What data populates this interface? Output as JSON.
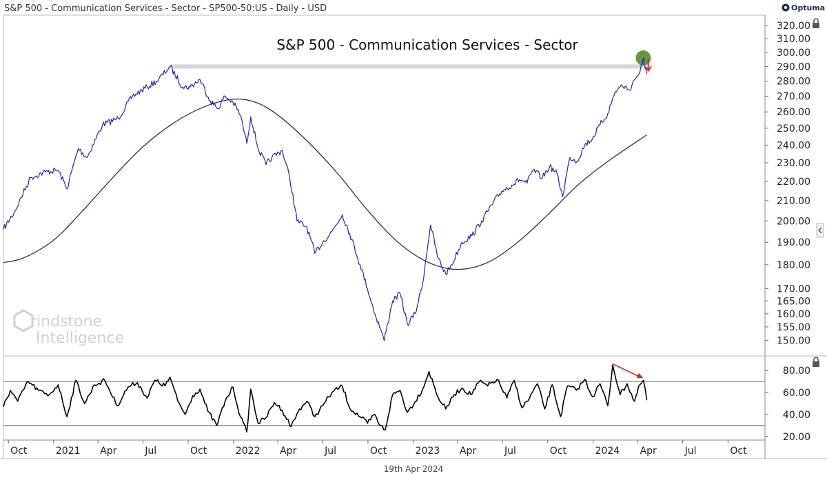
{
  "header": {
    "instrument": "S&P 500 - Communication Services - Sector - SP500-50:US - Daily - USD",
    "brand": "Optuma",
    "footer_date": "19th Apr 2024",
    "watermark_line1": "rindstone",
    "watermark_line2": "Intelligence"
  },
  "colors": {
    "price": "#1f1fd1",
    "moving_average": "#23306b",
    "rsi": "#000000",
    "resistance_band": "#d6d8db",
    "highlight_circle": "#5a8a2e",
    "arrow": "#e02020",
    "grid_axis": "#999999"
  },
  "chart_data": [
    {
      "type": "line",
      "title": "S&P 500 - Communication Services - Sector",
      "xlabel": "",
      "ylabel": "",
      "scale": "log",
      "ylim": [
        146,
        327
      ],
      "grid": false,
      "x_range": [
        "2020-09-21",
        "2024-12-15"
      ],
      "yticks": [
        "150.00",
        "155.00",
        "160.00",
        "165.00",
        "170.00",
        "180.00",
        "190.00",
        "200.00",
        "210.00",
        "220.00",
        "230.00",
        "240.00",
        "250.00",
        "260.00",
        "270.00",
        "280.00",
        "290.00",
        "300.00",
        "310.00",
        "320.00"
      ],
      "series": [
        {
          "kind": "price",
          "points": [
            [
              "2020-09-21",
              196
            ],
            [
              "2020-10-15",
              205
            ],
            [
              "2020-11-15",
              222
            ],
            [
              "2020-12-15",
              225
            ],
            [
              "2021-01-10",
              226
            ],
            [
              "2021-01-28",
              216
            ],
            [
              "2021-02-20",
              238
            ],
            [
              "2021-03-10",
              233
            ],
            [
              "2021-04-10",
              252
            ],
            [
              "2021-05-12",
              256
            ],
            [
              "2021-06-10",
              270
            ],
            [
              "2021-07-10",
              276
            ],
            [
              "2021-08-02",
              281
            ],
            [
              "2021-08-25",
              290
            ],
            [
              "2021-09-20",
              276
            ],
            [
              "2021-10-05",
              276
            ],
            [
              "2021-10-25",
              281
            ],
            [
              "2021-11-15",
              267
            ],
            [
              "2021-11-30",
              262
            ],
            [
              "2021-12-15",
              270
            ],
            [
              "2021-12-31",
              266
            ],
            [
              "2022-01-15",
              258
            ],
            [
              "2022-01-28",
              241
            ],
            [
              "2022-02-05",
              257
            ],
            [
              "2022-02-20",
              238
            ],
            [
              "2022-03-08",
              229
            ],
            [
              "2022-03-20",
              233
            ],
            [
              "2022-04-10",
              237
            ],
            [
              "2022-04-25",
              222
            ],
            [
              "2022-05-10",
              200
            ],
            [
              "2022-05-30",
              197
            ],
            [
              "2022-06-15",
              185
            ],
            [
              "2022-07-01",
              190
            ],
            [
              "2022-07-20",
              195
            ],
            [
              "2022-08-10",
              203
            ],
            [
              "2022-08-25",
              194
            ],
            [
              "2022-09-15",
              180
            ],
            [
              "2022-09-30",
              170
            ],
            [
              "2022-10-15",
              160
            ],
            [
              "2022-10-27",
              154
            ],
            [
              "2022-11-03",
              150
            ],
            [
              "2022-11-20",
              165
            ],
            [
              "2022-12-05",
              168
            ],
            [
              "2022-12-20",
              156
            ],
            [
              "2023-01-05",
              160
            ],
            [
              "2023-01-20",
              172
            ],
            [
              "2023-02-05",
              198
            ],
            [
              "2023-02-20",
              183
            ],
            [
              "2023-03-08",
              176
            ],
            [
              "2023-03-20",
              180
            ],
            [
              "2023-04-10",
              190
            ],
            [
              "2023-04-30",
              193
            ],
            [
              "2023-05-20",
              200
            ],
            [
              "2023-06-10",
              208
            ],
            [
              "2023-06-30",
              215
            ],
            [
              "2023-07-20",
              218
            ],
            [
              "2023-08-05",
              221
            ],
            [
              "2023-08-20",
              219
            ],
            [
              "2023-09-01",
              226
            ],
            [
              "2023-09-20",
              222
            ],
            [
              "2023-10-05",
              228
            ],
            [
              "2023-10-20",
              224
            ],
            [
              "2023-10-31",
              212
            ],
            [
              "2023-11-15",
              233
            ],
            [
              "2023-11-30",
              231
            ],
            [
              "2023-12-15",
              240
            ],
            [
              "2023-12-31",
              244
            ],
            [
              "2024-01-15",
              252
            ],
            [
              "2024-01-31",
              259
            ],
            [
              "2024-02-15",
              273
            ],
            [
              "2024-02-29",
              277
            ],
            [
              "2024-03-15",
              274
            ],
            [
              "2024-03-25",
              281
            ],
            [
              "2024-04-05",
              286
            ],
            [
              "2024-04-10",
              292
            ],
            [
              "2024-04-12",
              296
            ],
            [
              "2024-04-15",
              289
            ],
            [
              "2024-04-19",
              285
            ]
          ]
        },
        {
          "kind": "moving_average",
          "points": [
            [
              "2020-09-21",
              181
            ],
            [
              "2020-11-01",
              183
            ],
            [
              "2021-01-01",
              191
            ],
            [
              "2021-03-01",
              205
            ],
            [
              "2021-05-01",
              222
            ],
            [
              "2021-07-01",
              239
            ],
            [
              "2021-09-01",
              253
            ],
            [
              "2021-11-01",
              263
            ],
            [
              "2021-12-31",
              268
            ],
            [
              "2022-02-15",
              266
            ],
            [
              "2022-04-01",
              258
            ],
            [
              "2022-06-01",
              242
            ],
            [
              "2022-08-01",
              224
            ],
            [
              "2022-10-01",
              205
            ],
            [
              "2022-12-01",
              190
            ],
            [
              "2023-02-01",
              181
            ],
            [
              "2023-04-01",
              178
            ],
            [
              "2023-06-01",
              181
            ],
            [
              "2023-08-01",
              190
            ],
            [
              "2023-10-01",
              203
            ],
            [
              "2023-12-01",
              218
            ],
            [
              "2024-02-01",
              231
            ],
            [
              "2024-04-19",
              246
            ]
          ]
        }
      ],
      "annotations": [
        {
          "kind": "resistance-band",
          "x_start": "2021-08-25",
          "x_end": "2024-04-12",
          "y": 290
        },
        {
          "kind": "highlight-circle",
          "x": "2024-04-12",
          "y": 296
        },
        {
          "kind": "down-arrow",
          "x": "2024-04-22",
          "y": 291
        }
      ]
    },
    {
      "type": "line",
      "title": "",
      "xlabel": "",
      "ylabel": "",
      "ylim": [
        18,
        92
      ],
      "grid": false,
      "yticks": [
        "20.00",
        "40.00",
        "60.00",
        "80.00"
      ],
      "reference_lines": [
        70,
        30
      ],
      "series": [
        {
          "kind": "rsi",
          "points": [
            [
              "2020-09-21",
              47
            ],
            [
              "2020-10-05",
              62
            ],
            [
              "2020-10-20",
              52
            ],
            [
              "2020-11-10",
              70
            ],
            [
              "2020-12-01",
              62
            ],
            [
              "2020-12-20",
              57
            ],
            [
              "2021-01-10",
              67
            ],
            [
              "2021-01-28",
              38
            ],
            [
              "2021-02-15",
              71
            ],
            [
              "2021-03-05",
              50
            ],
            [
              "2021-03-25",
              67
            ],
            [
              "2021-04-15",
              71
            ],
            [
              "2021-05-10",
              48
            ],
            [
              "2021-06-01",
              65
            ],
            [
              "2021-06-20",
              69
            ],
            [
              "2021-07-10",
              55
            ],
            [
              "2021-07-25",
              71
            ],
            [
              "2021-08-15",
              66
            ],
            [
              "2021-08-25",
              74
            ],
            [
              "2021-09-10",
              52
            ],
            [
              "2021-09-25",
              40
            ],
            [
              "2021-10-10",
              57
            ],
            [
              "2021-10-25",
              63
            ],
            [
              "2021-11-10",
              43
            ],
            [
              "2021-11-28",
              30
            ],
            [
              "2021-12-15",
              52
            ],
            [
              "2021-12-31",
              65
            ],
            [
              "2022-01-15",
              38
            ],
            [
              "2022-01-28",
              24
            ],
            [
              "2022-02-05",
              63
            ],
            [
              "2022-02-20",
              32
            ],
            [
              "2022-03-08",
              37
            ],
            [
              "2022-03-25",
              51
            ],
            [
              "2022-04-10",
              44
            ],
            [
              "2022-04-28",
              29
            ],
            [
              "2022-05-15",
              45
            ],
            [
              "2022-05-30",
              52
            ],
            [
              "2022-06-15",
              38
            ],
            [
              "2022-07-01",
              48
            ],
            [
              "2022-07-20",
              60
            ],
            [
              "2022-08-10",
              66
            ],
            [
              "2022-08-25",
              46
            ],
            [
              "2022-09-15",
              38
            ],
            [
              "2022-09-30",
              32
            ],
            [
              "2022-10-15",
              40
            ],
            [
              "2022-10-25",
              30
            ],
            [
              "2022-11-05",
              26
            ],
            [
              "2022-11-20",
              58
            ],
            [
              "2022-12-05",
              62
            ],
            [
              "2022-12-20",
              42
            ],
            [
              "2023-01-05",
              52
            ],
            [
              "2023-01-20",
              63
            ],
            [
              "2023-02-02",
              79
            ],
            [
              "2023-02-20",
              56
            ],
            [
              "2023-03-08",
              45
            ],
            [
              "2023-03-25",
              58
            ],
            [
              "2023-04-10",
              64
            ],
            [
              "2023-04-28",
              58
            ],
            [
              "2023-05-15",
              70
            ],
            [
              "2023-06-01",
              66
            ],
            [
              "2023-06-20",
              72
            ],
            [
              "2023-07-10",
              55
            ],
            [
              "2023-07-25",
              71
            ],
            [
              "2023-08-10",
              46
            ],
            [
              "2023-08-25",
              55
            ],
            [
              "2023-09-10",
              68
            ],
            [
              "2023-09-25",
              45
            ],
            [
              "2023-10-10",
              67
            ],
            [
              "2023-10-27",
              38
            ],
            [
              "2023-11-10",
              66
            ],
            [
              "2023-11-28",
              62
            ],
            [
              "2023-12-15",
              72
            ],
            [
              "2023-12-31",
              56
            ],
            [
              "2024-01-15",
              68
            ],
            [
              "2024-01-31",
              48
            ],
            [
              "2024-02-10",
              85
            ],
            [
              "2024-02-25",
              58
            ],
            [
              "2024-03-10",
              68
            ],
            [
              "2024-03-25",
              52
            ],
            [
              "2024-04-05",
              67
            ],
            [
              "2024-04-12",
              71
            ],
            [
              "2024-04-19",
              53
            ]
          ]
        }
      ],
      "annotations": [
        {
          "kind": "divergence-arrow",
          "x_start": "2024-02-10",
          "y_start": 86,
          "x_end": "2024-04-12",
          "y_end": 73
        }
      ]
    }
  ],
  "x_axis": {
    "ticks": [
      {
        "label": "Oct",
        "date": "2020-10-01"
      },
      {
        "label": "2021",
        "date": "2021-01-01"
      },
      {
        "label": "Apr",
        "date": "2021-04-01"
      },
      {
        "label": "Jul",
        "date": "2021-07-01"
      },
      {
        "label": "Oct",
        "date": "2021-10-01"
      },
      {
        "label": "2022",
        "date": "2022-01-01"
      },
      {
        "label": "Apr",
        "date": "2022-04-01"
      },
      {
        "label": "Jul",
        "date": "2022-07-01"
      },
      {
        "label": "Oct",
        "date": "2022-10-01"
      },
      {
        "label": "2023",
        "date": "2023-01-01"
      },
      {
        "label": "Apr",
        "date": "2023-04-01"
      },
      {
        "label": "Jul",
        "date": "2023-07-01"
      },
      {
        "label": "Oct",
        "date": "2023-10-01"
      },
      {
        "label": "2024",
        "date": "2024-01-01"
      },
      {
        "label": "Apr",
        "date": "2024-04-01"
      },
      {
        "label": "Jul",
        "date": "2024-07-01"
      },
      {
        "label": "Oct",
        "date": "2024-10-01"
      }
    ]
  }
}
